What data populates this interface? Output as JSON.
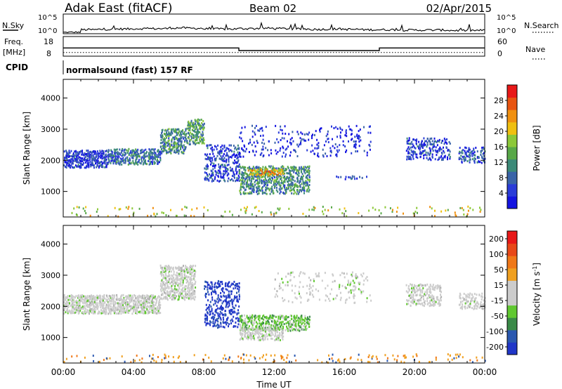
{
  "header": {
    "station": "Adak East (fitACF)",
    "beam": "Beam 02",
    "date": "02/Apr/2015"
  },
  "chart_data": [
    {
      "type": "line",
      "panel": "noise",
      "left_label": "N.Sky",
      "right_label": "N.Search",
      "y_ticks_left": [
        "10^5",
        "10^0"
      ],
      "y_ticks_right": [
        "10^5",
        "10^0"
      ],
      "sky_noise_level_fraction": [
        0.03,
        0.18,
        0.2,
        0.22,
        0.24,
        0.24,
        0.28,
        0.26,
        0.22,
        0.22,
        0.24,
        0.26,
        0.24,
        0.22,
        0.2,
        0.22,
        0.2,
        0.18,
        0.18,
        0.16,
        0.16,
        0.16,
        0.14,
        0.14
      ]
    },
    {
      "type": "line",
      "panel": "frequency",
      "left_label_top": "Freq.",
      "left_label_bottom": "[MHz]",
      "right_label": "Nave",
      "y_ticks_left": [
        "18",
        "8"
      ],
      "y_ticks_right": [
        "60",
        "0"
      ],
      "freq_steps": [
        {
          "start_h": 0.0,
          "end_h": 10.0,
          "mhz": 12.1
        },
        {
          "start_h": 10.0,
          "end_h": 18.0,
          "mhz": 10.7
        },
        {
          "start_h": 18.0,
          "end_h": 24.0,
          "mhz": 12.1
        }
      ],
      "freq_ylim": [
        8,
        18
      ],
      "nave_value": 10,
      "nave_ylim": [
        0,
        60
      ]
    },
    {
      "type": "heatmap",
      "panel": "power",
      "ylabel": "Slant Range [km]",
      "y_ticks": [
        1000,
        2000,
        3000,
        4000
      ],
      "ylim": [
        180,
        4600
      ],
      "xlim_hours": [
        0,
        24
      ],
      "colorbar": {
        "label": "Power [dB]",
        "ticks": [
          "4",
          "8",
          "12",
          "16",
          "20",
          "24",
          "28"
        ],
        "colors": [
          "#1414e0",
          "#2a3cd8",
          "#3a64a8",
          "#3c8a78",
          "#58a848",
          "#8cc838",
          "#f0c010",
          "#f09010",
          "#e85410",
          "#e81818"
        ]
      },
      "scatter_regions": [
        {
          "h0": 0.0,
          "h1": 2.5,
          "r0": 1750,
          "r1": 2300,
          "level": 0.15,
          "density": 0.75
        },
        {
          "h0": 2.5,
          "h1": 5.5,
          "r0": 1850,
          "r1": 2350,
          "level": 0.25,
          "density": 0.7
        },
        {
          "h0": 5.5,
          "h1": 7.0,
          "r0": 2200,
          "r1": 3000,
          "level": 0.35,
          "density": 0.65
        },
        {
          "h0": 7.0,
          "h1": 8.0,
          "r0": 2500,
          "r1": 3300,
          "level": 0.4,
          "density": 0.55
        },
        {
          "h0": 8.0,
          "h1": 10.0,
          "r0": 1300,
          "r1": 2500,
          "level": 0.15,
          "density": 0.35
        },
        {
          "h0": 10.0,
          "h1": 14.0,
          "r0": 900,
          "r1": 1800,
          "level": 0.35,
          "density": 0.55
        },
        {
          "h0": 10.5,
          "h1": 12.5,
          "r0": 1500,
          "r1": 1700,
          "level": 0.7,
          "density": 0.7
        },
        {
          "h0": 10.0,
          "h1": 17.5,
          "r0": 2100,
          "r1": 3100,
          "level": 0.1,
          "density": 0.12
        },
        {
          "h0": 15.5,
          "h1": 17.5,
          "r0": 1380,
          "r1": 1480,
          "level": 0.15,
          "density": 0.3
        },
        {
          "h0": 19.5,
          "h1": 22.0,
          "r0": 2000,
          "r1": 2700,
          "level": 0.15,
          "density": 0.4
        },
        {
          "h0": 22.5,
          "h1": 24.0,
          "r0": 1900,
          "r1": 2400,
          "level": 0.2,
          "density": 0.45
        },
        {
          "h0": 0.0,
          "h1": 24.0,
          "r0": 180,
          "r1": 500,
          "level": 0.6,
          "density": 0.06
        }
      ]
    },
    {
      "type": "heatmap",
      "panel": "velocity",
      "ylabel": "Slant Range [km]",
      "y_ticks": [
        1000,
        2000,
        3000,
        4000
      ],
      "ylim": [
        180,
        4600
      ],
      "xlim_hours": [
        0,
        24
      ],
      "x_ticks": [
        "00:00",
        "04:00",
        "08:00",
        "12:00",
        "16:00",
        "20:00",
        "00:00"
      ],
      "xlabel": "Time UT",
      "colorbar": {
        "label_main": "Velocity [m s",
        "label_sup": "-1",
        "label_end": "]",
        "ticks": [
          "200",
          "100",
          "50",
          "15",
          "-15",
          "-50",
          "-100",
          "-200"
        ],
        "colors": [
          "#2036c8",
          "#2a58b0",
          "#3a8a48",
          "#60c830",
          "#cccccc",
          "#cccccc",
          "#f0a020",
          "#f07818",
          "#e84818",
          "#e81818"
        ]
      },
      "scatter_regions": [
        {
          "h0": 0.0,
          "h1": 5.5,
          "r0": 1750,
          "r1": 2350,
          "vel_class": "gray",
          "density": 0.75
        },
        {
          "h0": 5.5,
          "h1": 7.5,
          "r0": 2200,
          "r1": 3300,
          "vel_class": "gray",
          "density": 0.6
        },
        {
          "h0": 8.0,
          "h1": 10.0,
          "r0": 1300,
          "r1": 2800,
          "vel_class": "blue",
          "density": 0.35
        },
        {
          "h0": 10.0,
          "h1": 14.0,
          "r0": 1200,
          "r1": 1700,
          "vel_class": "green",
          "density": 0.6
        },
        {
          "h0": 10.0,
          "h1": 12.5,
          "r0": 900,
          "r1": 1300,
          "vel_class": "gray",
          "density": 0.5
        },
        {
          "h0": 12.0,
          "h1": 17.5,
          "r0": 2100,
          "r1": 3100,
          "vel_class": "gray",
          "density": 0.12
        },
        {
          "h0": 19.5,
          "h1": 21.5,
          "r0": 2000,
          "r1": 2700,
          "vel_class": "gray",
          "density": 0.4
        },
        {
          "h0": 22.5,
          "h1": 24.0,
          "r0": 1900,
          "r1": 2400,
          "vel_class": "gray",
          "density": 0.45
        },
        {
          "h0": 0.0,
          "h1": 24.0,
          "r0": 180,
          "r1": 450,
          "vel_class": "orange",
          "density": 0.07
        }
      ]
    }
  ],
  "cpid": {
    "label": "CPID",
    "program": "normalsound (fast) 157 RF"
  }
}
